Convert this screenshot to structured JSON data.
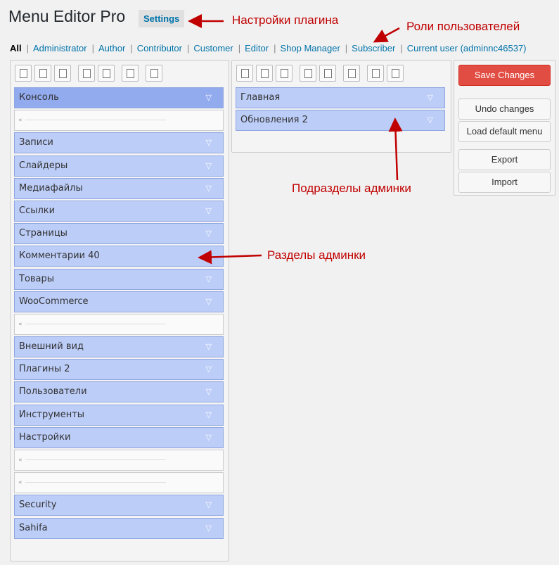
{
  "header": {
    "title": "Menu Editor Pro",
    "settings": "Settings"
  },
  "roles": [
    "All",
    "Administrator",
    "Author",
    "Contributor",
    "Customer",
    "Editor",
    "Shop Manager",
    "Subscriber",
    "Current user (adminnc46537)"
  ],
  "menu": [
    "Консоль",
    null,
    "Записи",
    "Слайдеры",
    "Медиафайлы",
    "Ссылки",
    "Страницы",
    "Комментарии 40",
    "Товары",
    "WooCommerce",
    null,
    "Внешний вид",
    "Плагины 2",
    "Пользователи",
    "Инструменты",
    "Настройки",
    null,
    null,
    "Security",
    "Sahifa"
  ],
  "submenu": [
    "Главная",
    "Обновления 2"
  ],
  "buttons": [
    "Save Changes",
    "Undo changes",
    "Load default menu",
    "Export",
    "Import"
  ],
  "annotations": [
    "Настройки плагина",
    "Роли пользователей",
    "Подразделы админки",
    "Разделы админки"
  ]
}
